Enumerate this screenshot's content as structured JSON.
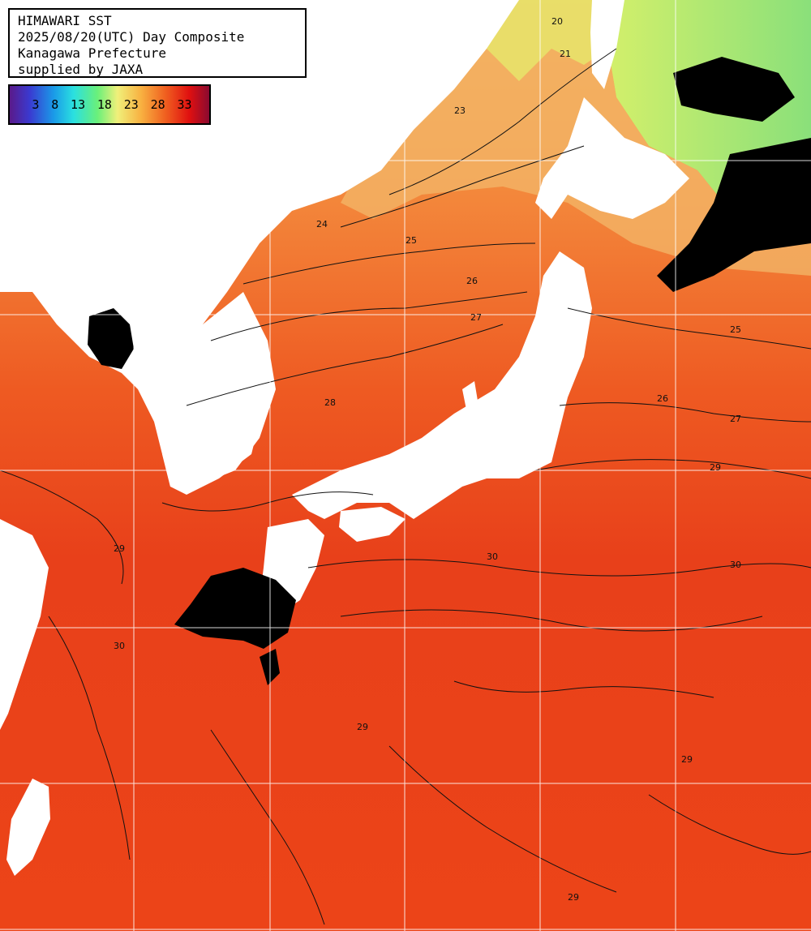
{
  "header": {
    "line1": "HIMAWARI SST",
    "line2": "2025/08/20(UTC) Day Composite",
    "line3": "Kanagawa Prefecture",
    "line4": "supplied by JAXA"
  },
  "legend": {
    "ticks": [
      "3",
      "8",
      "13",
      "18",
      "23",
      "28",
      "33"
    ]
  },
  "contour_labels": [
    "20",
    "21",
    "23",
    "24",
    "25",
    "26",
    "27",
    "28",
    "29",
    "30"
  ],
  "colors": {
    "ocean_warm": "#e8401a",
    "ocean_mid": "#f07a2e",
    "ocean_cool": "#f8b45a",
    "ocean_cold": "#d8ee6e",
    "land": "#ffffff",
    "cloud": "#000000",
    "grid": "#ffffff"
  }
}
